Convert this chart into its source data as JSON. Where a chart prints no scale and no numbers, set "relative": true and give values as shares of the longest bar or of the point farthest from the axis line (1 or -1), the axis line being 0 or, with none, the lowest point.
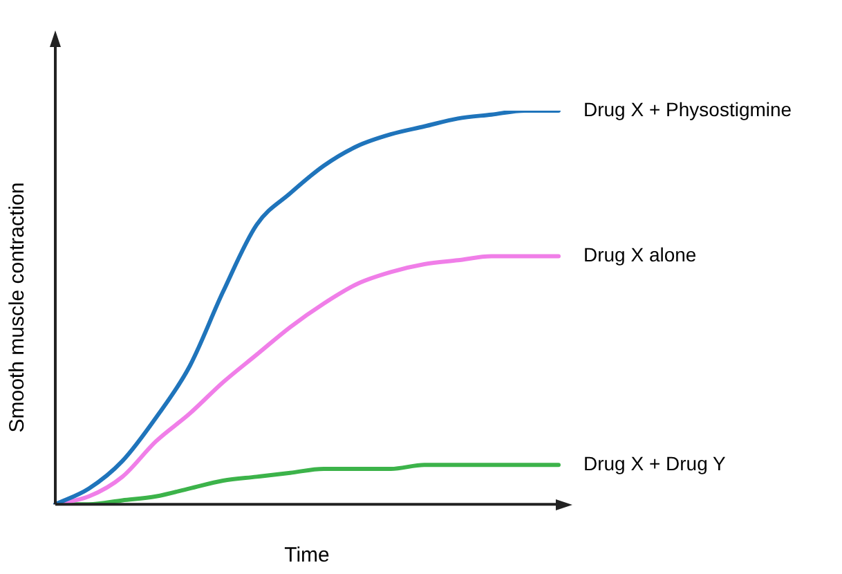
{
  "chart_data": {
    "type": "line",
    "xlabel": "Time",
    "ylabel": "Smooth muscle contraction",
    "relative": true,
    "categories": [
      null,
      null,
      null,
      null,
      null,
      null,
      null,
      null,
      null,
      null,
      null,
      null,
      null,
      null,
      null,
      null
    ],
    "series": [
      {
        "name": "Drug X + Physostigmine",
        "color": "#1f74bb",
        "values": [
          0,
          0.04,
          0.11,
          0.22,
          0.35,
          0.54,
          0.71,
          0.79,
          0.86,
          0.91,
          0.94,
          0.96,
          0.98,
          0.99,
          1,
          1
        ]
      },
      {
        "name": "Drug X alone",
        "color": "#f07ee8",
        "values": [
          0,
          0.02,
          0.07,
          0.16,
          0.23,
          0.31,
          0.38,
          0.45,
          0.51,
          0.56,
          0.59,
          0.61,
          0.62,
          0.63,
          0.63,
          0.63
        ]
      },
      {
        "name": "Drug X + Drug Y",
        "color": "#3cb34a",
        "values": [
          0,
          0,
          0.01,
          0.02,
          0.04,
          0.06,
          0.07,
          0.08,
          0.09,
          0.09,
          0.09,
          0.1,
          0.1,
          0.1,
          0.1,
          0.1
        ]
      }
    ]
  }
}
